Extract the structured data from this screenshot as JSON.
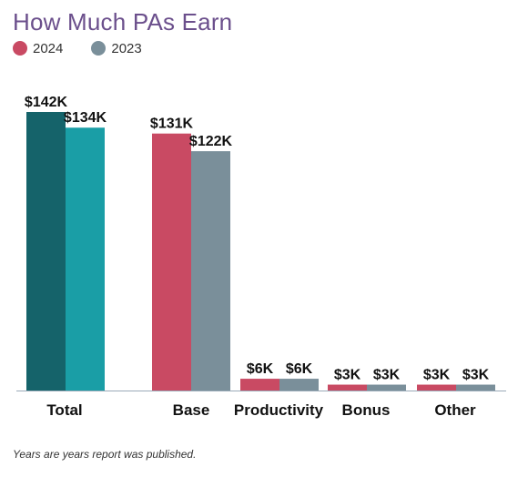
{
  "chart_data": {
    "type": "bar",
    "title": "How Much PAs Earn",
    "categories": [
      "Total",
      "Base",
      "Productivity",
      "Bonus",
      "Other"
    ],
    "series": [
      {
        "name": "2024",
        "values": [
          142,
          131,
          6,
          3,
          3
        ],
        "labels": [
          "$142K",
          "$131K",
          "$6K",
          "$3K",
          "$3K"
        ]
      },
      {
        "name": "2023",
        "values": [
          134,
          122,
          6,
          3,
          3
        ],
        "labels": [
          "$134K",
          "$122K",
          "$6K",
          "$3K",
          "$3K"
        ]
      }
    ],
    "ylim": [
      0,
      142
    ],
    "grid": false,
    "legend_position": "top-left",
    "unit": "thousands of USD"
  },
  "colors": {
    "series_2024": "#c94a63",
    "series_2023": "#7a8f9a",
    "total_2024": "#15636a",
    "total_2023": "#1a9ea6",
    "axis": "#9aaab8",
    "title": "#6b4f8c"
  },
  "footnote": "Years are years report was published."
}
